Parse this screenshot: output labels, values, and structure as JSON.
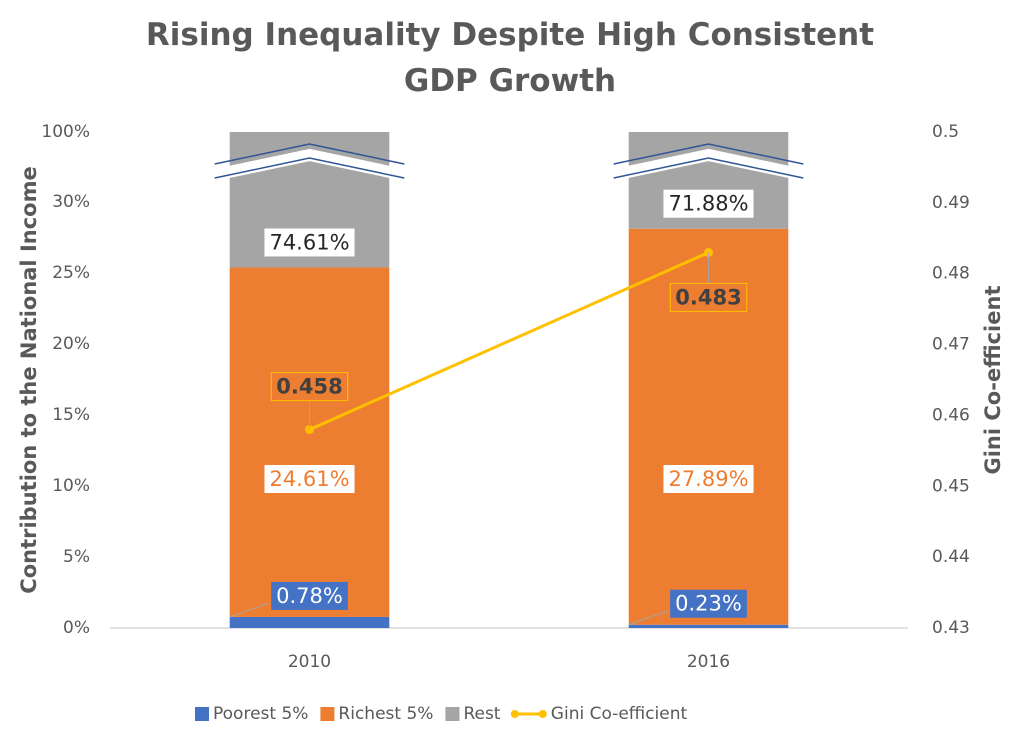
{
  "chart_data": {
    "type": "bar",
    "title": "Rising Inequality Despite High Consistent GDP Growth",
    "y_label": "Contribution to the National Income",
    "y2_label": "Gini Co-efficient",
    "categories": [
      "2010",
      "2016"
    ],
    "stacked": true,
    "series": [
      {
        "name": "Poorest 5%",
        "color": "#4472c4",
        "values": [
          0.78,
          0.23
        ],
        "value_labels": [
          "0.78%",
          "0.23%"
        ]
      },
      {
        "name": "Richest 5%",
        "color": "#ed7d31",
        "values": [
          24.61,
          27.89
        ],
        "value_labels": [
          "24.61%",
          "27.89%"
        ]
      },
      {
        "name": "Rest",
        "color": "#a5a5a5",
        "values": [
          74.61,
          71.88
        ],
        "value_labels": [
          "74.61%",
          "71.88%"
        ]
      },
      {
        "name": "Gini Co-efficient",
        "color": "#ffc000",
        "type": "line",
        "axis": "y2",
        "values": [
          0.458,
          0.483
        ]
      }
    ],
    "ylim": [
      0,
      100
    ],
    "yticks": [
      {
        "value": 0,
        "label": "0%"
      },
      {
        "value": 5,
        "label": "5%"
      },
      {
        "value": 10,
        "label": "10%"
      },
      {
        "value": 15,
        "label": "15%"
      },
      {
        "value": 20,
        "label": "20%"
      },
      {
        "value": 25,
        "label": "25%"
      },
      {
        "value": 30,
        "label": "30%"
      },
      {
        "value": 100,
        "label": "100%"
      }
    ],
    "y_break": [
      30,
      100
    ],
    "y2lim": [
      0.43,
      0.5
    ],
    "y2ticks": [
      0.43,
      0.44,
      0.45,
      0.46,
      0.47,
      0.48,
      0.49,
      0.5
    ],
    "legend": "bottom"
  }
}
